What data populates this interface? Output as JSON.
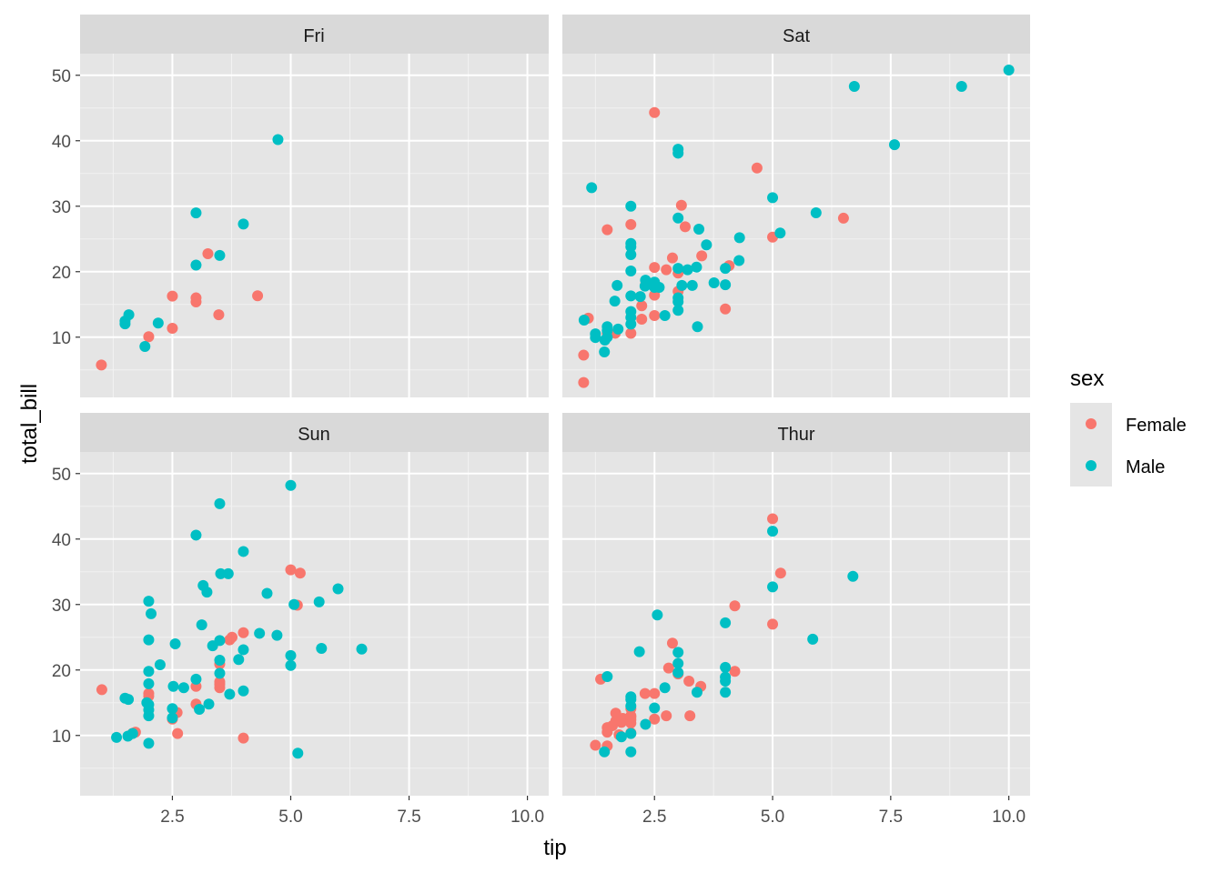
{
  "chart_data": {
    "type": "scatter",
    "xlabel": "tip",
    "ylabel": "total_bill",
    "xlim": [
      0.55,
      10.45
    ],
    "ylim": [
      0.8,
      53.3
    ],
    "x_ticks": [
      2.5,
      5.0,
      7.5,
      10.0
    ],
    "x_tick_labels": [
      "2.5",
      "5.0",
      "7.5",
      "10.0"
    ],
    "y_ticks": [
      10,
      20,
      30,
      40,
      50
    ],
    "y_tick_labels": [
      "10",
      "20",
      "30",
      "40",
      "50"
    ],
    "grid": true,
    "background": "#e5e5e5",
    "strip_background": "#d9d9d9",
    "legend": {
      "title": "sex",
      "position": "right",
      "entries": [
        {
          "name": "Female",
          "color": "#F8766D"
        },
        {
          "name": "Male",
          "color": "#00BFC4"
        }
      ]
    },
    "facets": [
      {
        "label": "Fri",
        "series": [
          {
            "name": "Female",
            "points": [
              [
                1.0,
                5.75
              ],
              [
                2.0,
                10.07
              ],
              [
                2.5,
                11.35
              ],
              [
                2.5,
                16.27
              ],
              [
                3.0,
                15.38
              ],
              [
                3.0,
                16.0
              ],
              [
                3.25,
                22.75
              ],
              [
                3.48,
                13.42
              ],
              [
                4.3,
                16.32
              ]
            ]
          },
          {
            "name": "Male",
            "points": [
              [
                1.5,
                12.03
              ],
              [
                1.5,
                12.46
              ],
              [
                1.58,
                13.42
              ],
              [
                1.92,
                8.58
              ],
              [
                2.2,
                12.16
              ],
              [
                3.0,
                21.01
              ],
              [
                3.0,
                28.97
              ],
              [
                3.5,
                22.49
              ],
              [
                4.0,
                27.28
              ],
              [
                4.73,
                40.17
              ]
            ]
          }
        ]
      },
      {
        "label": "Sat",
        "series": [
          {
            "name": "Female",
            "points": [
              [
                1.0,
                3.07
              ],
              [
                1.0,
                7.25
              ],
              [
                1.1,
                12.9
              ],
              [
                1.5,
                10.6
              ],
              [
                1.5,
                26.41
              ],
              [
                1.67,
                10.6
              ],
              [
                2.0,
                10.59
              ],
              [
                2.0,
                27.2
              ],
              [
                2.23,
                12.74
              ],
              [
                2.23,
                14.8
              ],
              [
                2.31,
                18.0
              ],
              [
                2.5,
                13.3
              ],
              [
                2.5,
                16.4
              ],
              [
                2.5,
                20.65
              ],
              [
                2.5,
                44.3
              ],
              [
                2.75,
                20.3
              ],
              [
                2.88,
                22.1
              ],
              [
                3.0,
                17.0
              ],
              [
                3.0,
                19.8
              ],
              [
                3.07,
                30.14
              ],
              [
                3.15,
                26.86
              ],
              [
                3.5,
                22.42
              ],
              [
                4.0,
                14.3
              ],
              [
                4.08,
                20.92
              ],
              [
                4.67,
                35.83
              ],
              [
                5.0,
                25.28
              ],
              [
                6.5,
                28.17
              ]
            ]
          },
          {
            "name": "Male",
            "points": [
              [
                1.01,
                12.6
              ],
              [
                1.17,
                32.83
              ],
              [
                1.25,
                9.94
              ],
              [
                1.25,
                10.51
              ],
              [
                1.44,
                7.74
              ],
              [
                1.45,
                9.55
              ],
              [
                1.5,
                10.0
              ],
              [
                1.5,
                11.0
              ],
              [
                1.5,
                11.6
              ],
              [
                1.66,
                15.5
              ],
              [
                1.71,
                17.9
              ],
              [
                1.73,
                11.24
              ],
              [
                2.0,
                12.0
              ],
              [
                2.0,
                13.0
              ],
              [
                2.0,
                13.9
              ],
              [
                2.0,
                16.3
              ],
              [
                2.0,
                20.1
              ],
              [
                2.0,
                22.6
              ],
              [
                2.0,
                23.8
              ],
              [
                2.0,
                24.3
              ],
              [
                2.0,
                30.0
              ],
              [
                2.2,
                16.2
              ],
              [
                2.3,
                17.8
              ],
              [
                2.31,
                18.7
              ],
              [
                2.5,
                17.6
              ],
              [
                2.5,
                18.4
              ],
              [
                2.6,
                17.6
              ],
              [
                2.72,
                13.3
              ],
              [
                3.0,
                14.1
              ],
              [
                3.0,
                15.4
              ],
              [
                3.0,
                16.0
              ],
              [
                3.0,
                20.5
              ],
              [
                3.0,
                28.2
              ],
              [
                3.0,
                38.1
              ],
              [
                3.0,
                38.7
              ],
              [
                3.08,
                17.9
              ],
              [
                3.2,
                20.3
              ],
              [
                3.3,
                17.9
              ],
              [
                3.39,
                20.7
              ],
              [
                3.41,
                11.6
              ],
              [
                3.44,
                26.5
              ],
              [
                3.6,
                24.1
              ],
              [
                3.76,
                18.3
              ],
              [
                4.0,
                18.0
              ],
              [
                4.0,
                20.5
              ],
              [
                4.29,
                21.7
              ],
              [
                4.3,
                25.2
              ],
              [
                5.0,
                31.3
              ],
              [
                5.16,
                25.9
              ],
              [
                5.92,
                29.0
              ],
              [
                6.73,
                48.3
              ],
              [
                7.58,
                39.4
              ],
              [
                9.0,
                48.3
              ],
              [
                10.0,
                50.8
              ]
            ]
          }
        ]
      },
      {
        "label": "Sun",
        "series": [
          {
            "name": "Female",
            "points": [
              [
                1.01,
                16.99
              ],
              [
                1.66,
                10.33
              ],
              [
                1.72,
                10.5
              ],
              [
                2.0,
                16.0
              ],
              [
                2.0,
                16.4
              ],
              [
                2.5,
                12.5
              ],
              [
                2.6,
                13.5
              ],
              [
                2.61,
                10.3
              ],
              [
                3.0,
                14.8
              ],
              [
                3.0,
                17.5
              ],
              [
                3.5,
                17.3
              ],
              [
                3.5,
                17.8
              ],
              [
                3.5,
                18.2
              ],
              [
                3.5,
                20.9
              ],
              [
                3.71,
                24.6
              ],
              [
                3.76,
                25.0
              ],
              [
                4.0,
                9.6
              ],
              [
                4.0,
                25.7
              ],
              [
                5.0,
                35.3
              ],
              [
                5.14,
                29.9
              ],
              [
                5.2,
                34.8
              ]
            ]
          },
          {
            "name": "Male",
            "points": [
              [
                1.32,
                9.7
              ],
              [
                1.5,
                15.7
              ],
              [
                1.56,
                9.9
              ],
              [
                1.57,
                15.5
              ],
              [
                1.66,
                10.3
              ],
              [
                1.96,
                15.0
              ],
              [
                2.0,
                8.8
              ],
              [
                2.0,
                13.0
              ],
              [
                2.0,
                13.9
              ],
              [
                2.0,
                14.7
              ],
              [
                2.0,
                17.9
              ],
              [
                2.0,
                19.8
              ],
              [
                2.0,
                24.6
              ],
              [
                2.0,
                30.5
              ],
              [
                2.05,
                28.6
              ],
              [
                2.24,
                20.8
              ],
              [
                2.5,
                12.7
              ],
              [
                2.5,
                14.1
              ],
              [
                2.52,
                17.5
              ],
              [
                2.56,
                24.0
              ],
              [
                2.74,
                17.3
              ],
              [
                3.0,
                18.6
              ],
              [
                3.0,
                40.6
              ],
              [
                3.07,
                14.0
              ],
              [
                3.12,
                26.9
              ],
              [
                3.15,
                32.9
              ],
              [
                3.23,
                31.9
              ],
              [
                3.27,
                14.8
              ],
              [
                3.35,
                23.7
              ],
              [
                3.5,
                19.5
              ],
              [
                3.5,
                21.5
              ],
              [
                3.5,
                24.5
              ],
              [
                3.5,
                45.4
              ],
              [
                3.52,
                34.7
              ],
              [
                3.68,
                34.7
              ],
              [
                3.71,
                16.3
              ],
              [
                3.9,
                21.6
              ],
              [
                4.0,
                16.8
              ],
              [
                4.0,
                23.1
              ],
              [
                4.0,
                38.1
              ],
              [
                4.34,
                25.6
              ],
              [
                4.5,
                31.7
              ],
              [
                4.71,
                25.3
              ],
              [
                5.0,
                20.7
              ],
              [
                5.0,
                22.2
              ],
              [
                5.0,
                48.2
              ],
              [
                5.07,
                30.0
              ],
              [
                5.15,
                7.3
              ],
              [
                5.6,
                30.4
              ],
              [
                5.65,
                23.3
              ],
              [
                6.0,
                32.4
              ],
              [
                6.5,
                23.2
              ]
            ]
          }
        ]
      },
      {
        "label": "Thur",
        "series": [
          {
            "name": "Female",
            "points": [
              [
                1.25,
                8.5
              ],
              [
                1.36,
                18.6
              ],
              [
                1.5,
                8.4
              ],
              [
                1.5,
                10.5
              ],
              [
                1.5,
                11.2
              ],
              [
                1.61,
                11.5
              ],
              [
                1.68,
                12.2
              ],
              [
                1.68,
                13.4
              ],
              [
                1.75,
                10.1
              ],
              [
                1.8,
                12.0
              ],
              [
                1.83,
                12.6
              ],
              [
                2.0,
                10.4
              ],
              [
                2.0,
                11.9
              ],
              [
                2.0,
                12.4
              ],
              [
                2.0,
                12.8
              ],
              [
                2.0,
                13.0
              ],
              [
                2.0,
                14.1
              ],
              [
                2.3,
                16.4
              ],
              [
                2.5,
                12.5
              ],
              [
                2.5,
                16.4
              ],
              [
                2.75,
                13.0
              ],
              [
                2.8,
                20.3
              ],
              [
                2.88,
                24.1
              ],
              [
                3.0,
                19.4
              ],
              [
                3.23,
                18.3
              ],
              [
                3.25,
                13.0
              ],
              [
                3.48,
                17.5
              ],
              [
                4.2,
                29.8
              ],
              [
                4.2,
                19.8
              ],
              [
                5.0,
                27.0
              ],
              [
                5.0,
                43.1
              ],
              [
                5.17,
                34.8
              ]
            ]
          },
          {
            "name": "Male",
            "points": [
              [
                1.44,
                7.5
              ],
              [
                1.5,
                19.0
              ],
              [
                1.8,
                9.8
              ],
              [
                2.0,
                7.5
              ],
              [
                2.0,
                10.3
              ],
              [
                2.0,
                14.5
              ],
              [
                2.0,
                15.5
              ],
              [
                2.0,
                15.9
              ],
              [
                2.18,
                22.8
              ],
              [
                2.31,
                11.7
              ],
              [
                2.5,
                14.2
              ],
              [
                2.56,
                28.4
              ],
              [
                2.72,
                17.3
              ],
              [
                3.0,
                19.6
              ],
              [
                3.0,
                21.0
              ],
              [
                3.0,
                22.7
              ],
              [
                3.4,
                16.6
              ],
              [
                4.0,
                16.6
              ],
              [
                4.0,
                18.3
              ],
              [
                4.0,
                18.9
              ],
              [
                4.0,
                20.4
              ],
              [
                4.0,
                27.2
              ],
              [
                5.0,
                32.7
              ],
              [
                5.0,
                41.2
              ],
              [
                5.85,
                24.7
              ],
              [
                6.7,
                34.3
              ]
            ]
          }
        ]
      }
    ]
  }
}
